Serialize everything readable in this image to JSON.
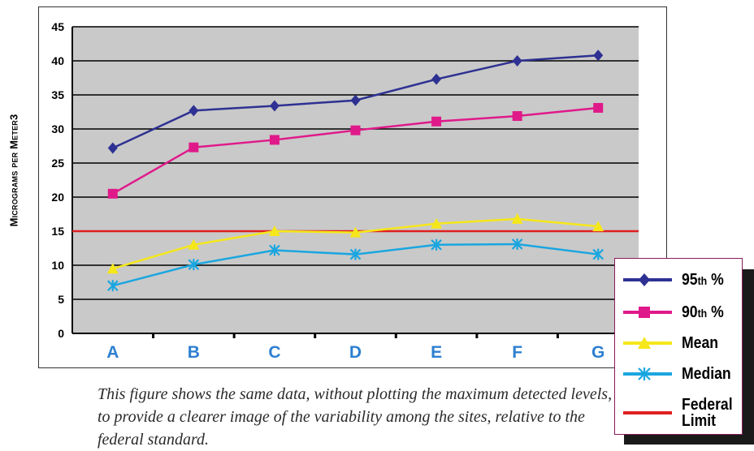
{
  "chart_data": {
    "type": "line",
    "title": "",
    "xlabel": "",
    "ylabel": "Micrograms per Meter3",
    "categories": [
      "A",
      "B",
      "C",
      "D",
      "E",
      "F",
      "G"
    ],
    "ylim": [
      0,
      45
    ],
    "yticks": [
      0,
      5,
      10,
      15,
      20,
      25,
      30,
      35,
      40,
      45
    ],
    "grid": true,
    "legend_position": "bottom-right",
    "series": [
      {
        "name": "95th %",
        "marker": "diamond",
        "color": "#2e3192",
        "values": [
          27.2,
          32.7,
          33.4,
          34.2,
          37.3,
          40.0,
          40.8
        ]
      },
      {
        "name": "90th %",
        "marker": "square",
        "color": "#e0198a",
        "values": [
          20.5,
          27.3,
          28.4,
          29.8,
          31.1,
          31.9,
          33.1
        ]
      },
      {
        "name": "Mean",
        "marker": "triangle",
        "color": "#f5e71a",
        "values": [
          9.5,
          13.0,
          15.0,
          14.8,
          16.1,
          16.8,
          15.7
        ]
      },
      {
        "name": "Median",
        "marker": "star",
        "color": "#1aa6e0",
        "values": [
          7.0,
          10.1,
          12.2,
          11.6,
          13.0,
          13.1,
          11.6
        ]
      }
    ],
    "reference_lines": [
      {
        "name": "Federal Limit",
        "value": 15,
        "color": "#e02020"
      }
    ]
  },
  "legend": [
    {
      "label": "95th %",
      "marker": "diamond",
      "color": "#2e3192"
    },
    {
      "label": "90th %",
      "marker": "square",
      "color": "#e0198a"
    },
    {
      "label": "Mean",
      "marker": "triangle",
      "color": "#f5e71a"
    },
    {
      "label": "Median",
      "marker": "star",
      "color": "#1aa6e0"
    },
    {
      "label": "Federal Limit",
      "marker": "line",
      "color": "#e02020"
    }
  ],
  "caption": "This figure shows the same data, without plotting the maximum detected levels, to provide a clearer image of the variability among the sites, relative to the federal standard."
}
